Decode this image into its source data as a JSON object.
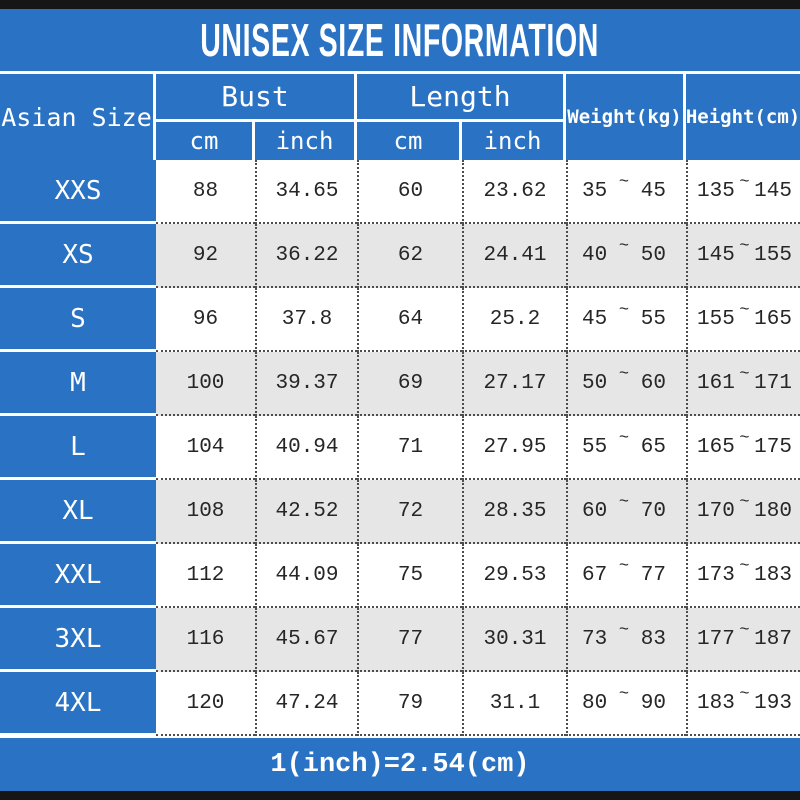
{
  "title": "UNISEX SIZE INFORMATION",
  "footer_note": "1(inch)=2.54(cm)",
  "tilde": "~",
  "header": {
    "size": "Asian Size",
    "bust": "Bust",
    "length": "Length",
    "weight": "Weight(kg)",
    "height": "Height(cm)",
    "cm": "cm",
    "inch": "inch"
  },
  "rows": [
    {
      "size": "XXS",
      "bust_cm": "88",
      "bust_inch": "34.65",
      "length_cm": "60",
      "length_inch": "23.62",
      "weight_min": "35",
      "weight_max": "45",
      "height_min": "135",
      "height_max": "145"
    },
    {
      "size": "XS",
      "bust_cm": "92",
      "bust_inch": "36.22",
      "length_cm": "62",
      "length_inch": "24.41",
      "weight_min": "40",
      "weight_max": "50",
      "height_min": "145",
      "height_max": "155"
    },
    {
      "size": "S",
      "bust_cm": "96",
      "bust_inch": "37.8",
      "length_cm": "64",
      "length_inch": "25.2",
      "weight_min": "45",
      "weight_max": "55",
      "height_min": "155",
      "height_max": "165"
    },
    {
      "size": "M",
      "bust_cm": "100",
      "bust_inch": "39.37",
      "length_cm": "69",
      "length_inch": "27.17",
      "weight_min": "50",
      "weight_max": "60",
      "height_min": "161",
      "height_max": "171"
    },
    {
      "size": "L",
      "bust_cm": "104",
      "bust_inch": "40.94",
      "length_cm": "71",
      "length_inch": "27.95",
      "weight_min": "55",
      "weight_max": "65",
      "height_min": "165",
      "height_max": "175"
    },
    {
      "size": "XL",
      "bust_cm": "108",
      "bust_inch": "42.52",
      "length_cm": "72",
      "length_inch": "28.35",
      "weight_min": "60",
      "weight_max": "70",
      "height_min": "170",
      "height_max": "180"
    },
    {
      "size": "XXL",
      "bust_cm": "112",
      "bust_inch": "44.09",
      "length_cm": "75",
      "length_inch": "29.53",
      "weight_min": "67",
      "weight_max": "77",
      "height_min": "173",
      "height_max": "183"
    },
    {
      "size": "3XL",
      "bust_cm": "116",
      "bust_inch": "45.67",
      "length_cm": "77",
      "length_inch": "30.31",
      "weight_min": "73",
      "weight_max": "83",
      "height_min": "177",
      "height_max": "187"
    },
    {
      "size": "4XL",
      "bust_cm": "120",
      "bust_inch": "47.24",
      "length_cm": "79",
      "length_inch": "31.1",
      "weight_min": "80",
      "weight_max": "90",
      "height_min": "183",
      "height_max": "193"
    }
  ],
  "colors": {
    "blue": "#2a72c4",
    "row_alt_gray": "#e6e6e6",
    "edge_bar_black": "#161616",
    "dotted_border": "#4d4d4d",
    "text_dark": "#262626",
    "text_white": "#ffffff"
  },
  "chart_data": {
    "type": "table",
    "title": "UNISEX SIZE INFORMATION",
    "note": "1(inch)=2.54(cm)",
    "columns": [
      "Asian Size",
      "Bust cm",
      "Bust inch",
      "Length cm",
      "Length inch",
      "Weight(kg)",
      "Height(cm)"
    ],
    "rows": [
      [
        "XXS",
        88,
        34.65,
        60,
        23.62,
        "35~45",
        "135~145"
      ],
      [
        "XS",
        92,
        36.22,
        62,
        24.41,
        "40~50",
        "145~155"
      ],
      [
        "S",
        96,
        37.8,
        64,
        25.2,
        "45~55",
        "155~165"
      ],
      [
        "M",
        100,
        39.37,
        69,
        27.17,
        "50~60",
        "161~171"
      ],
      [
        "L",
        104,
        40.94,
        71,
        27.95,
        "55~65",
        "165~175"
      ],
      [
        "XL",
        108,
        42.52,
        72,
        28.35,
        "60~70",
        "170~180"
      ],
      [
        "XXL",
        112,
        44.09,
        75,
        29.53,
        "67~77",
        "173~183"
      ],
      [
        "3XL",
        116,
        45.67,
        77,
        30.31,
        "73~83",
        "177~187"
      ],
      [
        "4XL",
        120,
        47.24,
        79,
        31.1,
        "80~90",
        "183~193"
      ]
    ]
  }
}
